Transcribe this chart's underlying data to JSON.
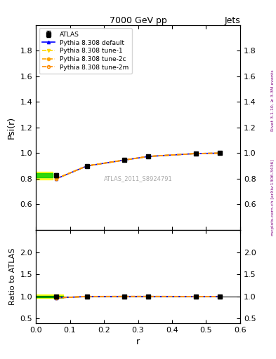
{
  "title": "7000 GeV pp",
  "title_right": "Jets",
  "ylabel_main": "Psi(r)",
  "ylabel_ratio": "Ratio to ATLAS",
  "xlabel": "r",
  "watermark": "ATLAS_2011_S8924791",
  "right_label": "Rivet 3.1.10, ≥ 3.3M events",
  "right_label2": "mcplots.cern.ch [arXiv:1306.3436]",
  "x_data": [
    0.06,
    0.15,
    0.26,
    0.33,
    0.47,
    0.54
  ],
  "atlas_y": [
    0.826,
    0.9,
    0.945,
    0.973,
    0.997,
    1.0
  ],
  "atlas_yerr": [
    0.015,
    0.01,
    0.008,
    0.006,
    0.004,
    0.003
  ],
  "pythia_default_y": [
    0.8,
    0.9,
    0.946,
    0.974,
    0.997,
    1.0
  ],
  "pythia_tune1_y": [
    0.8,
    0.9,
    0.946,
    0.974,
    0.997,
    1.0
  ],
  "pythia_tune2c_y": [
    0.8,
    0.9,
    0.946,
    0.974,
    0.997,
    1.0
  ],
  "pythia_tune2m_y": [
    0.802,
    0.901,
    0.947,
    0.975,
    0.997,
    1.0
  ],
  "ratio_default": [
    0.968,
    1.0,
    1.001,
    1.001,
    1.0,
    1.0
  ],
  "ratio_tune1": [
    0.968,
    1.0,
    1.001,
    1.001,
    1.0,
    1.0
  ],
  "ratio_tune2c": [
    0.968,
    1.0,
    1.001,
    1.001,
    1.0,
    1.0
  ],
  "ratio_tune2m": [
    0.97,
    1.001,
    1.002,
    1.002,
    1.0,
    1.0
  ],
  "atlas_ratio_err_low": [
    0.019,
    0.011,
    0.008,
    0.006,
    0.004,
    0.003
  ],
  "atlas_ratio_err_high": [
    0.019,
    0.011,
    0.008,
    0.006,
    0.004,
    0.003
  ],
  "color_default": "#0000ff",
  "color_tune1": "#ffd700",
  "color_tune2c": "#ffa500",
  "color_tune2m": "#ff8c00",
  "color_atlas": "#000000",
  "band_color_yellow": "#ffff00",
  "band_color_green": "#00cc00",
  "xlim": [
    0,
    0.6
  ],
  "ylim_main": [
    0.4,
    2.0
  ],
  "ylim_ratio": [
    0.4,
    2.5
  ],
  "yticks_main": [
    0.6,
    0.8,
    1.0,
    1.2,
    1.4,
    1.6,
    1.8
  ],
  "yticks_ratio": [
    0.5,
    1.0,
    1.5,
    2.0
  ]
}
